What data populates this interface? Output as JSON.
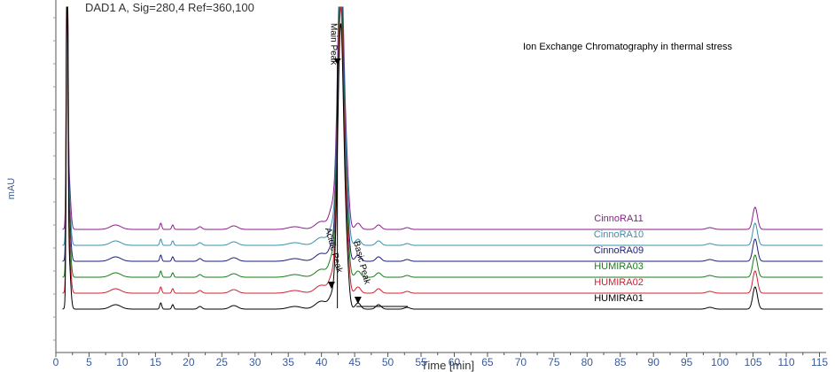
{
  "header": {
    "signal": "DAD1 A, Sig=280,4 Ref=360,100"
  },
  "chart_data": {
    "type": "line",
    "title": "Ion Exchange Chromatography in thermal stress",
    "xlabel": "Time [min]",
    "ylabel": "mAU",
    "xlim": [
      0,
      116
    ],
    "x_ticks": [
      "0",
      "5",
      "10",
      "15",
      "20",
      "25",
      "30",
      "35",
      "40",
      "45",
      "50",
      "55",
      "60",
      "65",
      "70",
      "75",
      "80",
      "85",
      "90",
      "95",
      "100",
      "105",
      "110",
      "115"
    ],
    "y_ticks": [],
    "grid": false,
    "peak_labels": [
      {
        "text": "Main Peak",
        "x": 42.8
      },
      {
        "text": "Acidic Peak",
        "x": 41.5
      },
      {
        "text": "Basic Peak",
        "x": 45.5
      }
    ],
    "peaks": [
      {
        "t": 1.7,
        "h": 360,
        "w": 0.12
      },
      {
        "t": 1.95,
        "h": 60,
        "w": 0.25
      },
      {
        "t": 9.0,
        "h": 5,
        "w": 0.8
      },
      {
        "t": 15.8,
        "h": 7,
        "w": 0.15
      },
      {
        "t": 17.6,
        "h": 5,
        "w": 0.15
      },
      {
        "t": 21.7,
        "h": 3,
        "w": 0.3
      },
      {
        "t": 26.8,
        "h": 4,
        "w": 0.6
      },
      {
        "t": 36.0,
        "h": 3,
        "w": 1.0
      },
      {
        "t": 40.0,
        "h": 9,
        "w": 0.9
      },
      {
        "t": 41.7,
        "h": 15,
        "w": 0.5
      },
      {
        "t": 42.9,
        "h": 320,
        "w": 0.45
      },
      {
        "t": 43.8,
        "h": 45,
        "w": 0.35
      },
      {
        "t": 45.5,
        "h": 7,
        "w": 0.4
      },
      {
        "t": 48.6,
        "h": 5,
        "w": 0.4
      },
      {
        "t": 52.9,
        "h": 2,
        "w": 0.4
      },
      {
        "t": 98.5,
        "h": 2,
        "w": 0.5
      },
      {
        "t": 105.3,
        "h": 25,
        "w": 0.35
      }
    ],
    "series": [
      {
        "name": "HUMIRA01",
        "color": "#000000",
        "offset": 0,
        "acidic": 1.0,
        "basic": 1.0
      },
      {
        "name": "HUMIRA02",
        "color": "#cc2233",
        "offset": 18,
        "acidic": 1.3,
        "basic": 1.1
      },
      {
        "name": "HUMIRA03",
        "color": "#1a7a1a",
        "offset": 36,
        "acidic": 1.5,
        "basic": 1.1
      },
      {
        "name": "CinnoRA09",
        "color": "#1c1c7a",
        "offset": 54,
        "acidic": 1.2,
        "basic": 1.0
      },
      {
        "name": "CinnoRA10",
        "color": "#3a8fa8",
        "offset": 72,
        "acidic": 1.4,
        "basic": 1.2
      },
      {
        "name": "CinnoRA11",
        "color": "#8a1f8a",
        "offset": 90,
        "acidic": 1.6,
        "basic": 1.2
      }
    ]
  }
}
